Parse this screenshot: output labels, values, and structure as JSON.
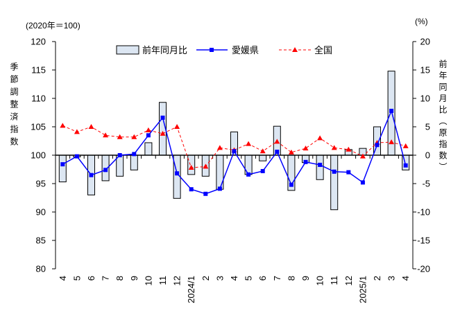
{
  "chart_data": {
    "type": "bar",
    "categories": [
      "4",
      "5",
      "6",
      "7",
      "8",
      "9",
      "10",
      "11",
      "12",
      "2024/1",
      "2",
      "3",
      "4",
      "5",
      "6",
      "7",
      "8",
      "9",
      "10",
      "11",
      "12",
      "2025/1",
      "2",
      "3",
      "4"
    ],
    "left_axis": {
      "unit": "(2020年＝100)",
      "label": "季節調整済指数",
      "min": 80,
      "max": 120,
      "step": 5
    },
    "right_axis": {
      "unit": "(%)",
      "label": "前年同月比（原指数）",
      "min": -20,
      "max": 20,
      "step": 5
    },
    "series": [
      {
        "name": "前年同月比",
        "type": "bar",
        "axis": "right",
        "color": "#dce6f2",
        "edge_color": "#000000",
        "values": [
          -4.7,
          -0.3,
          -7.0,
          -4.5,
          -3.7,
          -2.6,
          2.2,
          9.3,
          -7.6,
          -3.4,
          -3.7,
          -6.0,
          4.1,
          -3.4,
          -1.0,
          5.1,
          -6.2,
          -1.3,
          -4.3,
          -9.6,
          1.0,
          1.2,
          5.0,
          14.8,
          -2.6
        ]
      },
      {
        "name": "愛媛県",
        "type": "line",
        "axis": "left",
        "color": "#0000ff",
        "marker": "square",
        "line_style": "solid",
        "values": [
          98.4,
          99.8,
          96.5,
          97.4,
          100.0,
          100.2,
          103.5,
          106.6,
          96.8,
          94.0,
          93.2,
          94.1,
          100.7,
          96.6,
          97.2,
          100.6,
          94.8,
          98.8,
          98.3,
          97.1,
          97.0,
          95.2,
          101.8,
          107.8,
          98.2
        ]
      },
      {
        "name": "全国",
        "type": "line",
        "axis": "left",
        "color": "#ff0000",
        "marker": "triangle",
        "line_style": "dashed",
        "values": [
          105.2,
          104.1,
          105.0,
          103.5,
          103.2,
          103.2,
          104.4,
          103.8,
          105.0,
          97.8,
          98.0,
          101.3,
          100.9,
          102.0,
          100.7,
          102.4,
          100.5,
          101.2,
          103.0,
          101.3,
          101.0,
          99.8,
          102.2,
          102.3,
          101.6
        ]
      }
    ],
    "legend": "top",
    "grid": false
  }
}
